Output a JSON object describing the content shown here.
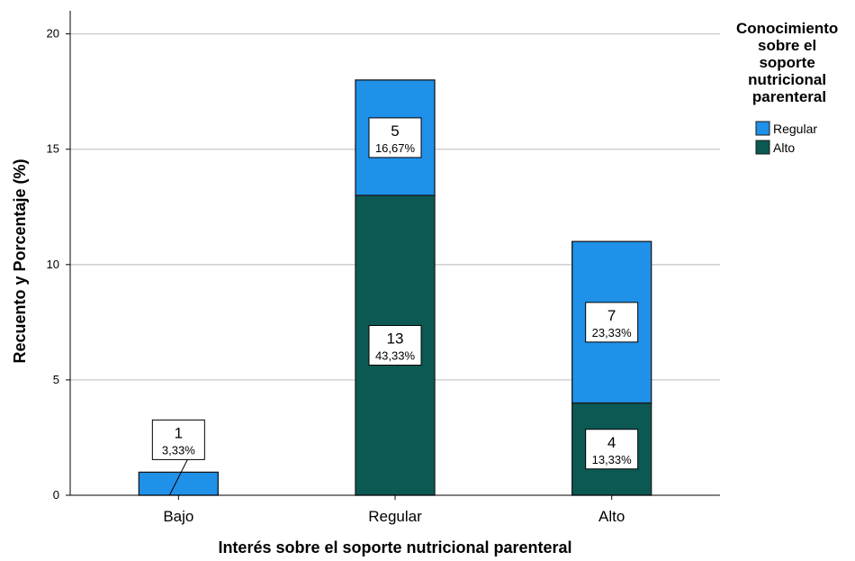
{
  "chart_data": {
    "type": "bar",
    "stacked": true,
    "xlabel": "Interés sobre el soporte nutricional parenteral",
    "ylabel": "Recuento y Porcentaje (%)",
    "ylim": [
      0,
      21
    ],
    "yticks": [
      0,
      5,
      10,
      15,
      20
    ],
    "grid": true,
    "categories": [
      "Bajo",
      "Regular",
      "Alto"
    ],
    "series": [
      {
        "name": "Alto",
        "color": "#0c5954",
        "values": [
          0,
          13,
          4
        ],
        "pct_labels": [
          "",
          "43,33%",
          "13,33%"
        ]
      },
      {
        "name": "Regular",
        "color": "#1f91e9",
        "values": [
          1,
          5,
          7
        ],
        "pct_labels": [
          "3,33%",
          "16,67%",
          "23,33%"
        ]
      }
    ],
    "legend": {
      "title_lines": [
        "Conocimiento",
        "sobre el",
        "soporte",
        "nutricional",
        "parenteral"
      ],
      "placement": "right",
      "entries": [
        {
          "label": "Regular",
          "color": "#1f91e9"
        },
        {
          "label": "Alto",
          "color": "#0c5954"
        }
      ]
    }
  }
}
